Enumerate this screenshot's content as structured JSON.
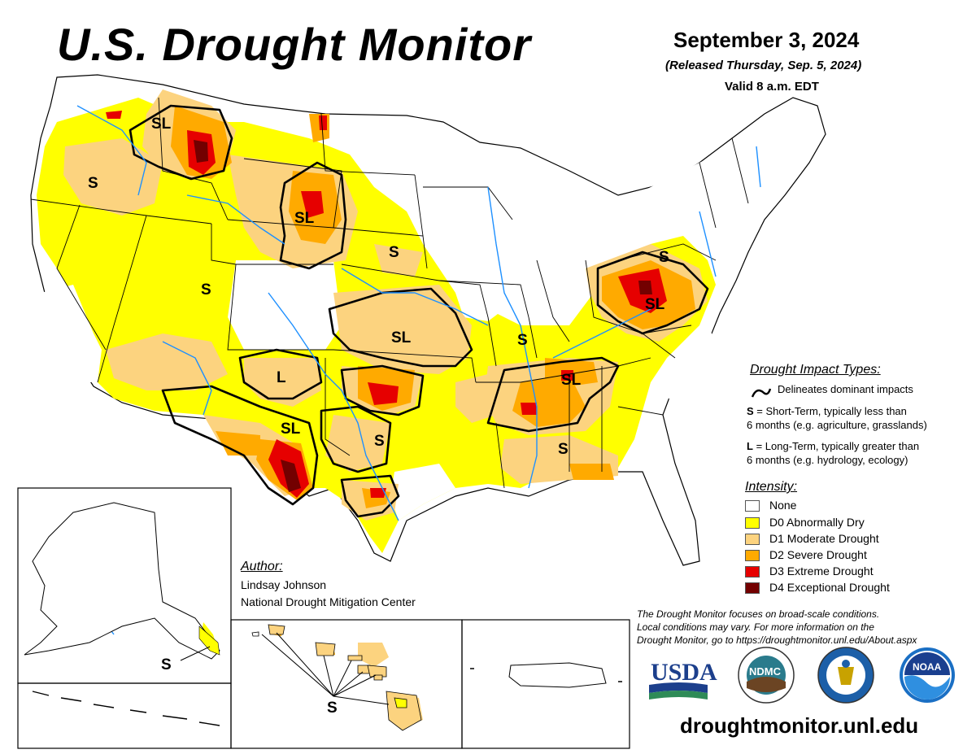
{
  "header": {
    "title": "U.S. Drought Monitor",
    "date": "September 3, 2024",
    "released": "(Released Thursday, Sep. 5, 2024)",
    "valid": "Valid 8 a.m. EDT"
  },
  "map_labels": {
    "S": "S",
    "SL": "SL",
    "L": "L"
  },
  "impact_types": {
    "title": "Drought Impact Types:",
    "delineates": "Delineates dominant impacts",
    "short_key": "S",
    "short_desc_1": " = Short-Term, typically less than",
    "short_desc_2": "6 months (e.g. agriculture, grasslands)",
    "long_key": "L",
    "long_desc_1": " = Long-Term, typically greater than",
    "long_desc_2": "6 months (e.g. hydrology, ecology)"
  },
  "intensity": {
    "title": "Intensity:",
    "levels": [
      {
        "label": "None",
        "color": "#ffffff"
      },
      {
        "label": "D0 Abnormally Dry",
        "color": "#ffff00"
      },
      {
        "label": "D1 Moderate Drought",
        "color": "#fcd37f"
      },
      {
        "label": "D2 Severe Drought",
        "color": "#ffaa00"
      },
      {
        "label": "D3 Extreme Drought",
        "color": "#e60000"
      },
      {
        "label": "D4 Exceptional Drought",
        "color": "#730000"
      }
    ]
  },
  "author": {
    "title": "Author:",
    "name": "Lindsay Johnson",
    "org": "National Drought Mitigation Center"
  },
  "disclaimer": {
    "line1": "The Drought Monitor focuses on broad-scale conditions.",
    "line2": "Local conditions may vary. For more information on the",
    "line3": "Drought Monitor, go to https://droughtmonitor.unl.edu/About.aspx"
  },
  "logos": {
    "usda": "USDA",
    "ndmc": "NDMC",
    "noaa": "NOAA"
  },
  "footer": {
    "site": "droughtmonitor.unl.edu"
  },
  "colors": {
    "water": "#1e90ff",
    "boundary": "#000000"
  }
}
